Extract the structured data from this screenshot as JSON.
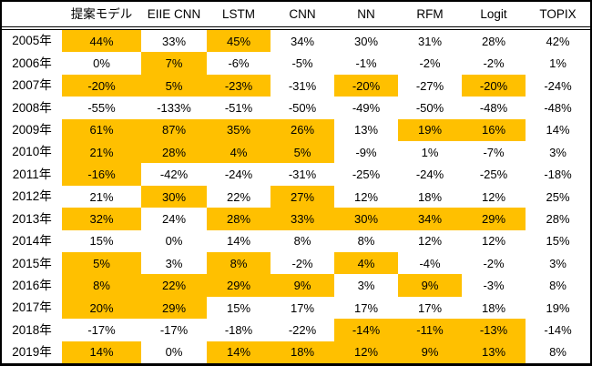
{
  "chart_data": {
    "type": "table",
    "unit": "%",
    "highlight_color": "#FFC000",
    "corner_label": "",
    "columns": [
      "提案モデル",
      "EIIE CNN",
      "LSTM",
      "CNN",
      "NN",
      "RFM",
      "Logit",
      "TOPIX"
    ],
    "years": [
      "2005年",
      "2006年",
      "2007年",
      "2008年",
      "2009年",
      "2010年",
      "2011年",
      "2012年",
      "2013年",
      "2014年",
      "2015年",
      "2016年",
      "2017年",
      "2018年",
      "2019年"
    ],
    "values_percent": [
      [
        44,
        33,
        45,
        34,
        30,
        31,
        28,
        42
      ],
      [
        0,
        7,
        -6,
        -5,
        -1,
        -2,
        -2,
        1
      ],
      [
        -20,
        5,
        -23,
        -31,
        -20,
        -27,
        -20,
        -24
      ],
      [
        -55,
        -133,
        -51,
        -50,
        -49,
        -50,
        -48,
        -48
      ],
      [
        61,
        87,
        35,
        26,
        13,
        19,
        16,
        14
      ],
      [
        21,
        28,
        4,
        5,
        -9,
        1,
        -7,
        3
      ],
      [
        -16,
        -42,
        -24,
        -31,
        -25,
        -24,
        -25,
        -18
      ],
      [
        21,
        30,
        22,
        27,
        12,
        18,
        12,
        25
      ],
      [
        32,
        24,
        28,
        33,
        30,
        34,
        29,
        28
      ],
      [
        15,
        0,
        14,
        8,
        8,
        12,
        12,
        15
      ],
      [
        5,
        3,
        8,
        -2,
        4,
        -4,
        -2,
        3
      ],
      [
        8,
        22,
        29,
        9,
        3,
        9,
        -3,
        8
      ],
      [
        20,
        29,
        15,
        17,
        17,
        17,
        18,
        19
      ],
      [
        -17,
        -17,
        -18,
        -22,
        -14,
        -11,
        -13,
        -14
      ],
      [
        14,
        0,
        14,
        18,
        12,
        9,
        13,
        8
      ]
    ],
    "highlighted": [
      [
        1,
        0,
        1,
        0,
        0,
        0,
        0,
        0
      ],
      [
        0,
        1,
        0,
        0,
        0,
        0,
        0,
        0
      ],
      [
        1,
        1,
        1,
        0,
        1,
        0,
        1,
        0
      ],
      [
        0,
        0,
        0,
        0,
        0,
        0,
        0,
        0
      ],
      [
        1,
        1,
        1,
        1,
        0,
        1,
        1,
        0
      ],
      [
        1,
        1,
        1,
        1,
        0,
        0,
        0,
        0
      ],
      [
        1,
        0,
        0,
        0,
        0,
        0,
        0,
        0
      ],
      [
        0,
        1,
        0,
        1,
        0,
        0,
        0,
        0
      ],
      [
        1,
        0,
        1,
        1,
        1,
        1,
        1,
        0
      ],
      [
        0,
        0,
        0,
        0,
        0,
        0,
        0,
        0
      ],
      [
        1,
        0,
        1,
        0,
        1,
        0,
        0,
        0
      ],
      [
        1,
        1,
        1,
        1,
        0,
        1,
        0,
        0
      ],
      [
        1,
        1,
        0,
        0,
        0,
        0,
        0,
        0
      ],
      [
        0,
        0,
        0,
        0,
        1,
        1,
        1,
        0
      ],
      [
        1,
        0,
        1,
        1,
        1,
        1,
        1,
        0
      ]
    ]
  }
}
